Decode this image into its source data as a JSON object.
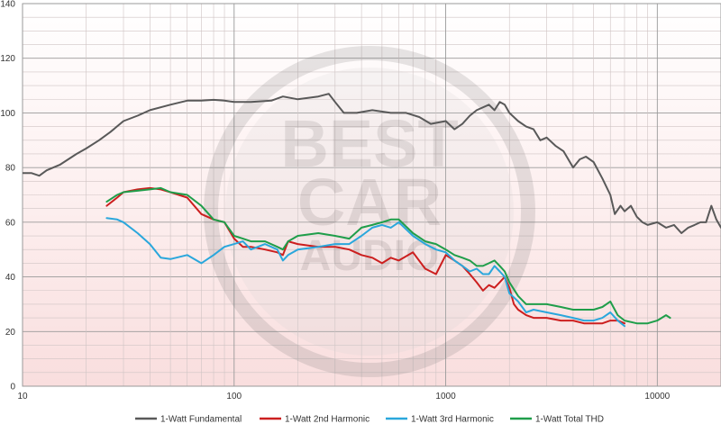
{
  "chart_data": {
    "type": "line",
    "x_scale": "log",
    "xlim": [
      10,
      20000
    ],
    "ylim": [
      0,
      140
    ],
    "x_ticks": [
      "10",
      "100",
      "1000",
      "10000"
    ],
    "y_ticks": [
      "0",
      "20",
      "40",
      "60",
      "80",
      "100",
      "120",
      "140"
    ],
    "grid": true,
    "legend_position": "bottom",
    "watermark": "BEST CAR AUDIO",
    "series": [
      {
        "name": "1-Watt Fundamental",
        "color": "#595959",
        "points": [
          [
            10,
            78
          ],
          [
            11,
            78
          ],
          [
            12,
            77
          ],
          [
            13,
            79
          ],
          [
            15,
            81
          ],
          [
            18,
            85
          ],
          [
            20,
            87
          ],
          [
            23,
            90
          ],
          [
            26,
            93
          ],
          [
            30,
            97
          ],
          [
            35,
            99
          ],
          [
            40,
            101
          ],
          [
            50,
            103
          ],
          [
            60,
            104.5
          ],
          [
            70,
            104.5
          ],
          [
            80,
            104.8
          ],
          [
            90,
            104.5
          ],
          [
            100,
            104
          ],
          [
            120,
            104
          ],
          [
            150,
            104.5
          ],
          [
            170,
            106
          ],
          [
            200,
            105
          ],
          [
            250,
            106
          ],
          [
            280,
            107
          ],
          [
            300,
            104
          ],
          [
            330,
            100
          ],
          [
            380,
            100
          ],
          [
            450,
            101
          ],
          [
            550,
            100
          ],
          [
            650,
            100
          ],
          [
            750,
            98.5
          ],
          [
            850,
            96
          ],
          [
            1000,
            97
          ],
          [
            1100,
            94
          ],
          [
            1200,
            96
          ],
          [
            1300,
            99
          ],
          [
            1400,
            101
          ],
          [
            1600,
            103
          ],
          [
            1700,
            101
          ],
          [
            1800,
            104
          ],
          [
            1900,
            103
          ],
          [
            2000,
            100
          ],
          [
            2200,
            97
          ],
          [
            2400,
            95
          ],
          [
            2600,
            94
          ],
          [
            2800,
            90
          ],
          [
            3000,
            91
          ],
          [
            3300,
            88
          ],
          [
            3600,
            86
          ],
          [
            4000,
            80
          ],
          [
            4300,
            83
          ],
          [
            4600,
            84
          ],
          [
            5000,
            82
          ],
          [
            5500,
            76
          ],
          [
            6000,
            70
          ],
          [
            6300,
            63
          ],
          [
            6700,
            66
          ],
          [
            7000,
            64
          ],
          [
            7500,
            66
          ],
          [
            8000,
            62
          ],
          [
            8500,
            60
          ],
          [
            9000,
            59
          ],
          [
            10000,
            60
          ],
          [
            11000,
            58
          ],
          [
            12000,
            59
          ],
          [
            13000,
            56
          ],
          [
            14000,
            58
          ],
          [
            15000,
            59
          ],
          [
            16000,
            60
          ],
          [
            17000,
            60
          ],
          [
            18000,
            66
          ],
          [
            19000,
            61
          ],
          [
            20000,
            58
          ]
        ]
      },
      {
        "name": "1-Watt 2nd Harmonic",
        "color": "#cc1f1f",
        "points": [
          [
            25,
            66
          ],
          [
            28,
            69
          ],
          [
            30,
            71
          ],
          [
            35,
            72
          ],
          [
            40,
            72.5
          ],
          [
            45,
            72
          ],
          [
            50,
            71
          ],
          [
            60,
            69
          ],
          [
            70,
            63
          ],
          [
            80,
            61
          ],
          [
            90,
            60
          ],
          [
            100,
            54
          ],
          [
            110,
            51
          ],
          [
            120,
            51
          ],
          [
            140,
            50
          ],
          [
            160,
            49
          ],
          [
            170,
            48
          ],
          [
            180,
            53
          ],
          [
            200,
            52
          ],
          [
            250,
            51
          ],
          [
            300,
            51
          ],
          [
            350,
            50
          ],
          [
            400,
            48
          ],
          [
            450,
            47
          ],
          [
            500,
            45
          ],
          [
            550,
            47
          ],
          [
            600,
            46
          ],
          [
            700,
            49
          ],
          [
            800,
            43
          ],
          [
            900,
            41
          ],
          [
            1000,
            48
          ],
          [
            1100,
            46
          ],
          [
            1200,
            44
          ],
          [
            1300,
            41
          ],
          [
            1400,
            38
          ],
          [
            1500,
            35
          ],
          [
            1600,
            37
          ],
          [
            1700,
            36
          ],
          [
            1800,
            38
          ],
          [
            1900,
            40
          ],
          [
            2000,
            36
          ],
          [
            2100,
            30
          ],
          [
            2200,
            28
          ],
          [
            2400,
            26
          ],
          [
            2600,
            25
          ],
          [
            3000,
            25
          ],
          [
            3500,
            24
          ],
          [
            4000,
            24
          ],
          [
            4500,
            23
          ],
          [
            5000,
            23
          ],
          [
            5500,
            23
          ],
          [
            6000,
            24
          ],
          [
            6500,
            24
          ],
          [
            7000,
            23
          ]
        ]
      },
      {
        "name": "1-Watt 3rd Harmonic",
        "color": "#2aa7dc",
        "points": [
          [
            25,
            61.5
          ],
          [
            28,
            61
          ],
          [
            30,
            60
          ],
          [
            35,
            56
          ],
          [
            40,
            52
          ],
          [
            45,
            47
          ],
          [
            50,
            46.5
          ],
          [
            60,
            48
          ],
          [
            70,
            45
          ],
          [
            80,
            48
          ],
          [
            90,
            51
          ],
          [
            100,
            52
          ],
          [
            110,
            53
          ],
          [
            120,
            50
          ],
          [
            140,
            52
          ],
          [
            160,
            50
          ],
          [
            170,
            46
          ],
          [
            180,
            48
          ],
          [
            200,
            50
          ],
          [
            250,
            51
          ],
          [
            300,
            52
          ],
          [
            350,
            52
          ],
          [
            400,
            55
          ],
          [
            450,
            58
          ],
          [
            500,
            59
          ],
          [
            550,
            58
          ],
          [
            600,
            60
          ],
          [
            700,
            55
          ],
          [
            800,
            52
          ],
          [
            900,
            50
          ],
          [
            1000,
            49
          ],
          [
            1100,
            46
          ],
          [
            1200,
            44
          ],
          [
            1300,
            42
          ],
          [
            1400,
            43
          ],
          [
            1500,
            41
          ],
          [
            1600,
            41
          ],
          [
            1700,
            44
          ],
          [
            1800,
            42
          ],
          [
            1900,
            40
          ],
          [
            2000,
            34
          ],
          [
            2200,
            31
          ],
          [
            2400,
            27
          ],
          [
            2600,
            28
          ],
          [
            3000,
            27
          ],
          [
            3500,
            26
          ],
          [
            4000,
            25
          ],
          [
            4500,
            24
          ],
          [
            5000,
            24
          ],
          [
            5500,
            25
          ],
          [
            6000,
            27
          ],
          [
            6500,
            24
          ],
          [
            7000,
            22
          ]
        ]
      },
      {
        "name": "1-Watt Total THD",
        "color": "#1f9e4a",
        "points": [
          [
            25,
            67.5
          ],
          [
            28,
            70
          ],
          [
            30,
            71
          ],
          [
            35,
            71.5
          ],
          [
            40,
            72
          ],
          [
            45,
            72.5
          ],
          [
            50,
            71
          ],
          [
            60,
            70
          ],
          [
            70,
            66
          ],
          [
            80,
            61
          ],
          [
            90,
            60
          ],
          [
            100,
            55
          ],
          [
            110,
            54
          ],
          [
            120,
            53
          ],
          [
            140,
            53
          ],
          [
            160,
            51
          ],
          [
            170,
            50
          ],
          [
            180,
            53
          ],
          [
            200,
            55
          ],
          [
            250,
            56
          ],
          [
            300,
            55
          ],
          [
            350,
            54
          ],
          [
            400,
            58
          ],
          [
            450,
            59
          ],
          [
            500,
            60
          ],
          [
            550,
            61
          ],
          [
            600,
            61
          ],
          [
            700,
            56
          ],
          [
            800,
            53
          ],
          [
            900,
            52
          ],
          [
            1000,
            50
          ],
          [
            1100,
            48
          ],
          [
            1200,
            47
          ],
          [
            1300,
            46
          ],
          [
            1400,
            44
          ],
          [
            1500,
            44
          ],
          [
            1600,
            45
          ],
          [
            1700,
            46
          ],
          [
            1800,
            44
          ],
          [
            1900,
            42
          ],
          [
            2000,
            38
          ],
          [
            2200,
            33
          ],
          [
            2400,
            30
          ],
          [
            2600,
            30
          ],
          [
            3000,
            30
          ],
          [
            3500,
            29
          ],
          [
            4000,
            28
          ],
          [
            4500,
            28
          ],
          [
            5000,
            28
          ],
          [
            5500,
            29
          ],
          [
            6000,
            31
          ],
          [
            6500,
            26
          ],
          [
            7000,
            24
          ],
          [
            8000,
            23
          ],
          [
            9000,
            23
          ],
          [
            10000,
            24
          ],
          [
            11000,
            26
          ],
          [
            11500,
            25
          ]
        ]
      }
    ]
  }
}
